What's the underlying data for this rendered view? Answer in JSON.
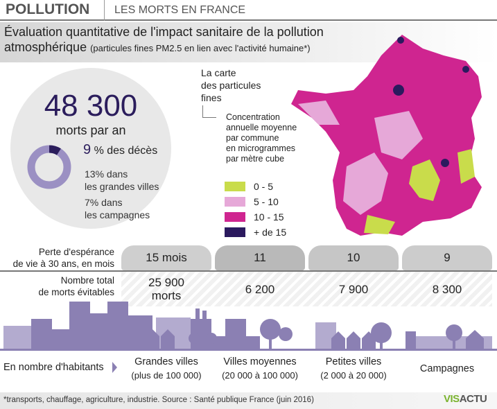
{
  "header": {
    "title": "POLLUTION",
    "subtitle": "LES MORTS EN FRANCE"
  },
  "intro": {
    "line1": "Évaluation quantitative de l'impact sanitaire de la pollution",
    "line2_main": "atmosphérique",
    "line2_note": "(particules fines PM2.5 en lien avec l'activité humaine*)"
  },
  "summary": {
    "deaths": "48 300",
    "deaths_label": "morts par an",
    "share_value": "9",
    "share_label": "% des décès",
    "share_fraction": 0.09,
    "cities": "13% dans",
    "cities2": "les grandes villes",
    "rural": "7% dans",
    "rural2": "les campagnes"
  },
  "map": {
    "title1": "La carte",
    "title2": "des particules",
    "title3": "fines",
    "desc": [
      "Concentration",
      "annuelle moyenne",
      "par commune",
      "en microgrammes",
      "par mètre cube"
    ],
    "legend": [
      {
        "label": "0 - 5",
        "color": "#c9dc4b"
      },
      {
        "label": "5 - 10",
        "color": "#e6a8d8"
      },
      {
        "label": "10 - 15",
        "color": "#cf2590"
      },
      {
        "label": "+ de 15",
        "color": "#2b1a5e"
      }
    ]
  },
  "table": {
    "row1_label1": "Perte d'espérance",
    "row1_label2": "de vie à 30 ans, en mois",
    "row2_label1": "Nombre total",
    "row2_label2": "de morts évitables",
    "columns": [
      {
        "loss": "15 mois",
        "deaths": "25 900",
        "deaths_unit": "morts",
        "name": "Grandes villes",
        "range": "(plus de 100 000)"
      },
      {
        "loss": "11",
        "deaths": "6 200",
        "deaths_unit": "",
        "name": "Villes moyennes",
        "range": "(20 000 à 100 000)"
      },
      {
        "loss": "10",
        "deaths": "7 900",
        "deaths_unit": "",
        "name": "Petites villes",
        "range": "(2 000 à 20 000)"
      },
      {
        "loss": "9",
        "deaths": "8 300",
        "deaths_unit": "",
        "name": "Campagnes",
        "range": ""
      }
    ],
    "inhabitants_label": "En nombre d'habitants"
  },
  "footer": {
    "note": "*transports, chauffage, agriculture, industrie. Source : Santé publique France (juin 2016)",
    "logo_a": "VIS",
    "logo_b": "ACTU"
  },
  "colors": {
    "dark": "#2b1d5c",
    "skyline": "#8b80b3"
  }
}
